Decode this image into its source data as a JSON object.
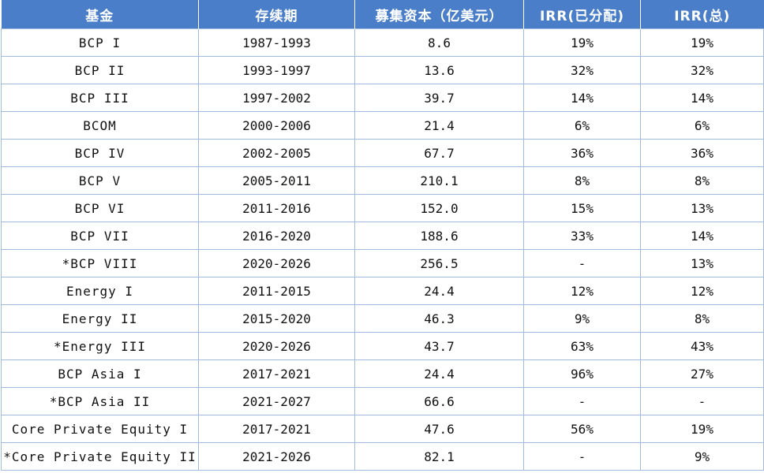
{
  "table": {
    "headers": [
      "基金",
      "存续期",
      "募集资本（亿美元）",
      "IRR(已分配)",
      "IRR(总)"
    ],
    "rows": [
      [
        "BCP I",
        "1987-1993",
        "8.6",
        "19%",
        "19%"
      ],
      [
        "BCP II",
        "1993-1997",
        "13.6",
        "32%",
        "32%"
      ],
      [
        "BCP III",
        "1997-2002",
        "39.7",
        "14%",
        "14%"
      ],
      [
        "BCOM",
        "2000-2006",
        "21.4",
        "6%",
        "6%"
      ],
      [
        "BCP IV",
        "2002-2005",
        "67.7",
        "36%",
        "36%"
      ],
      [
        "BCP V",
        "2005-2011",
        "210.1",
        "8%",
        "8%"
      ],
      [
        "BCP VI",
        "2011-2016",
        "152.0",
        "15%",
        "13%"
      ],
      [
        "BCP VII",
        "2016-2020",
        "188.6",
        "33%",
        "14%"
      ],
      [
        "*BCP VIII",
        "2020-2026",
        "256.5",
        "-",
        "13%"
      ],
      [
        "Energy I",
        "2011-2015",
        "24.4",
        "12%",
        "12%"
      ],
      [
        "Energy II",
        "2015-2020",
        "46.3",
        "9%",
        "8%"
      ],
      [
        "*Energy III",
        "2020-2026",
        "43.7",
        "63%",
        "43%"
      ],
      [
        "BCP Asia I",
        "2017-2021",
        "24.4",
        "96%",
        "27%"
      ],
      [
        "*BCP Asia II",
        "2021-2027",
        "66.6",
        "-",
        "-"
      ],
      [
        "Core Private Equity I",
        "2017-2021",
        "47.6",
        "56%",
        "19%"
      ],
      [
        "*Core Private Equity II",
        "2021-2026",
        "82.1",
        "-",
        "9%"
      ]
    ]
  },
  "colors": {
    "header_bg": "#4a7ec8",
    "header_text": "#ffffff",
    "grid_line": "#9fbbe0"
  }
}
